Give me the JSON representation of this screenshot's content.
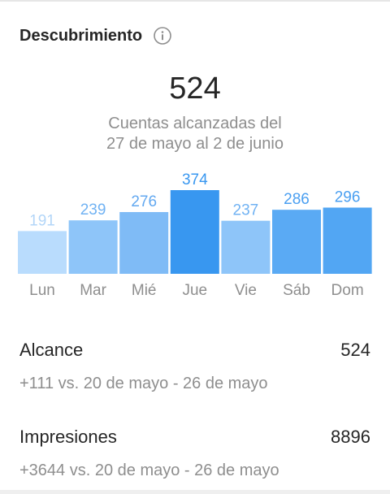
{
  "section": {
    "title": "Descubrimiento",
    "info_icon": "info-icon"
  },
  "summary": {
    "total": "524",
    "subtitle_line1": "Cuentas alcanzadas del",
    "subtitle_line2": "27 de mayo al 2 de junio"
  },
  "chart_data": {
    "type": "bar",
    "categories": [
      "Lun",
      "Mar",
      "Mié",
      "Jue",
      "Vie",
      "Sáb",
      "Dom"
    ],
    "values": [
      191,
      239,
      276,
      374,
      237,
      286,
      296
    ],
    "ylim": [
      0,
      374
    ],
    "highlight_index": 3,
    "colors": {
      "bars": [
        "#b9dcfd",
        "#8ec5f9",
        "#7fbbf6",
        "#3897f0",
        "#8ec5f9",
        "#5aaaf4",
        "#52a6f3"
      ],
      "labels": [
        "#b3d6f8",
        "#70b2f3",
        "#62a8f0",
        "#3897f0",
        "#70b2f3",
        "#4a9ff1",
        "#4a9ff1"
      ],
      "tick": "#8e8e8e"
    }
  },
  "metrics": [
    {
      "label": "Alcance",
      "value": "524",
      "comparison": "+111 vs. 20 de mayo - 26 de mayo"
    },
    {
      "label": "Impresiones",
      "value": "8896",
      "comparison": "+3644 vs. 20 de mayo - 26 de mayo"
    }
  ]
}
